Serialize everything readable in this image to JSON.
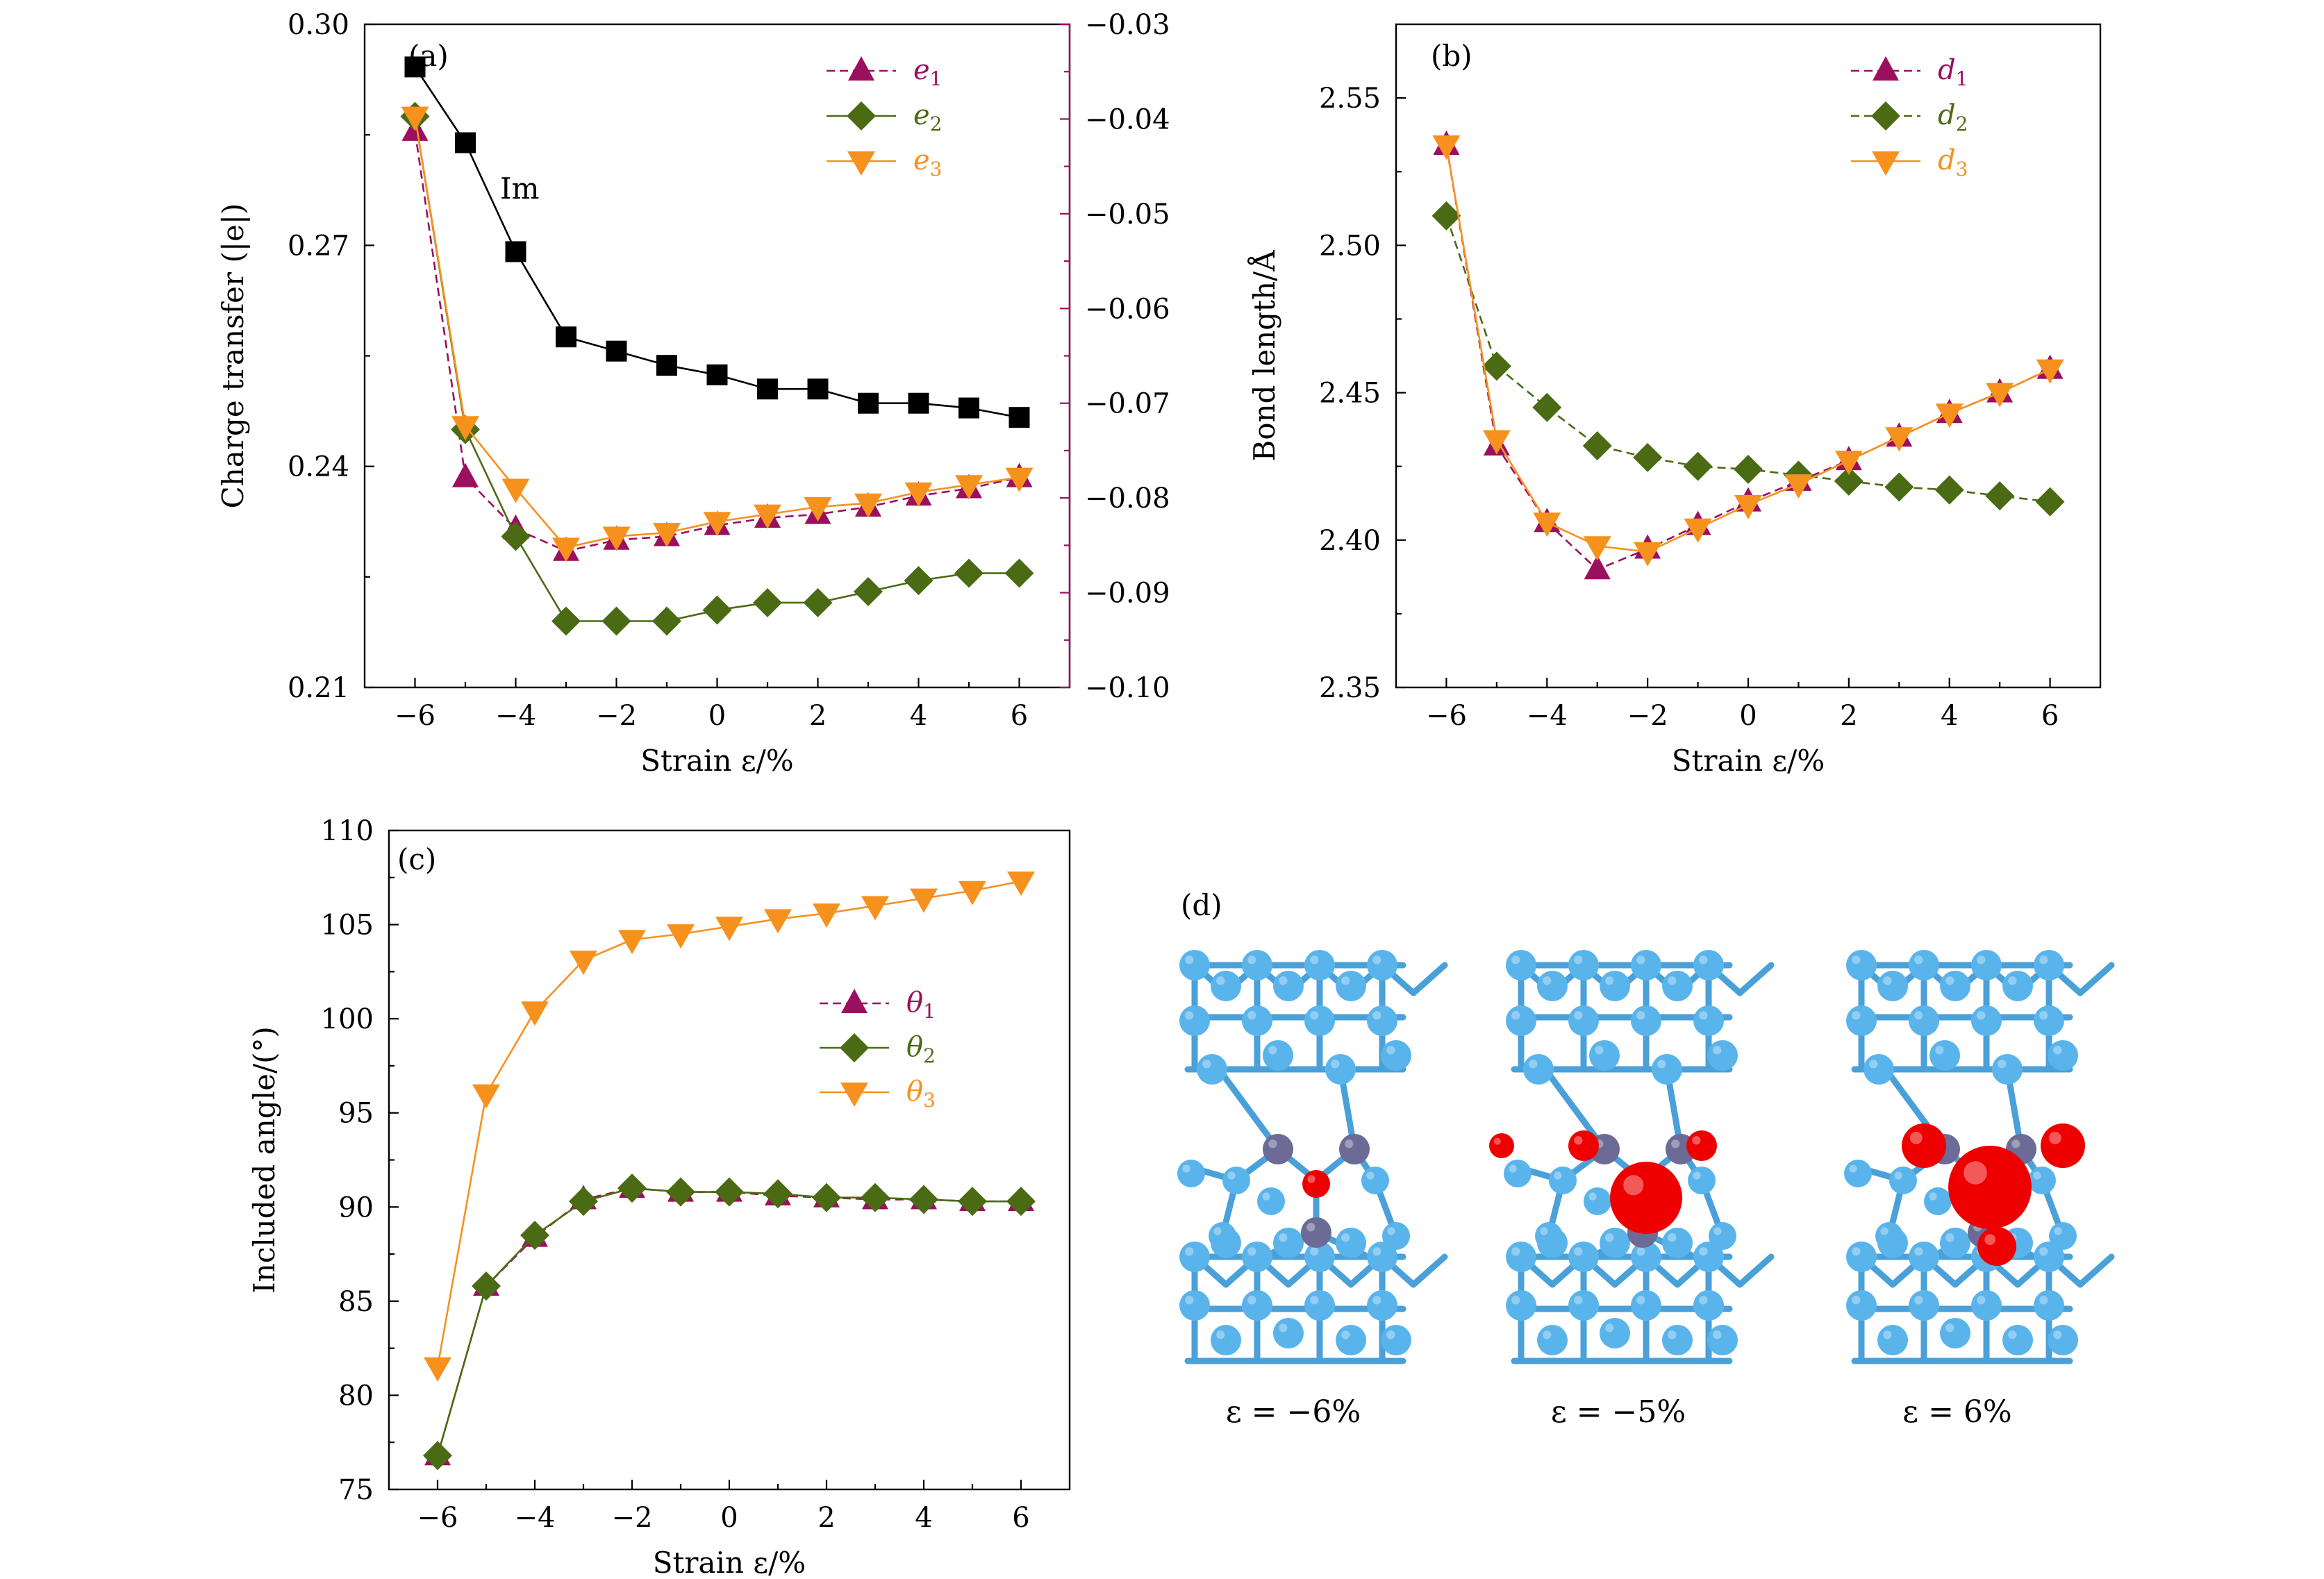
{
  "colors": {
    "e1": "#9b0f5f",
    "e2": "#4a6b14",
    "e3": "#f7911e",
    "im": "#000000",
    "right_axis": "#9b0f5f",
    "atom_si": "#5ab4ec",
    "atom_dopant": "#6b6b95",
    "atom_o": "#ee0000"
  },
  "panels": {
    "a": {
      "label": "(a)",
      "annotation": "Im"
    },
    "b": {
      "label": "(b)"
    },
    "c": {
      "label": "(c)"
    },
    "d": {
      "label": "(d)",
      "captions": [
        "ε = −6%",
        "ε = −5%",
        "ε = 6%"
      ]
    }
  },
  "chart_data": [
    {
      "id": "a",
      "type": "line",
      "xlabel": "Strain ε/%",
      "ylabel": "Charge transfer (|e|)",
      "xlim": [
        -7,
        7
      ],
      "xticks": [
        -6,
        -4,
        -2,
        0,
        2,
        4,
        6
      ],
      "ylim": [
        0.21,
        0.3
      ],
      "yticks": [
        "0.21",
        "0.24",
        "0.27",
        "0.30"
      ],
      "y2lim": [
        -0.1,
        -0.03
      ],
      "y2ticks": [
        "−0.10",
        "−0.09",
        "−0.08",
        "−0.07",
        "−0.06",
        "−0.05",
        "−0.04",
        "−0.03"
      ],
      "legend_position": "top-right",
      "x": [
        -6,
        -5,
        -4,
        -3,
        -2,
        -1,
        0,
        1,
        2,
        3,
        4,
        5,
        6
      ],
      "series": [
        {
          "key": "e1",
          "name": "e1",
          "marker": "triangle-up",
          "dash": true,
          "values": [
            0.2855,
            0.2385,
            0.2315,
            0.2285,
            0.23,
            0.2305,
            0.232,
            0.233,
            0.2335,
            0.2345,
            0.236,
            0.237,
            0.2385
          ]
        },
        {
          "key": "e2",
          "name": "e2",
          "marker": "diamond",
          "dash": false,
          "values": [
            0.2875,
            0.245,
            0.2305,
            0.219,
            0.219,
            0.219,
            0.2205,
            0.2215,
            0.2215,
            0.223,
            0.2245,
            0.2255,
            0.2255
          ]
        },
        {
          "key": "e3",
          "name": "e3",
          "marker": "triangle-down",
          "dash": false,
          "values": [
            0.2875,
            0.2455,
            0.237,
            0.229,
            0.2305,
            0.231,
            0.2325,
            0.2335,
            0.2345,
            0.235,
            0.2365,
            0.2375,
            0.2385
          ]
        },
        {
          "key": "im",
          "name": "Im",
          "marker": "square",
          "dash": false,
          "axis": "right",
          "values": [
            -0.0345,
            -0.0425,
            -0.054,
            -0.063,
            -0.0645,
            -0.066,
            -0.067,
            -0.0685,
            -0.0685,
            -0.07,
            -0.07,
            -0.0705,
            -0.0715
          ]
        }
      ]
    },
    {
      "id": "b",
      "type": "line",
      "xlabel": "Strain ε/%",
      "ylabel": "Bond length/Å",
      "xlim": [
        -7,
        7
      ],
      "xticks": [
        -6,
        -4,
        -2,
        0,
        2,
        4,
        6
      ],
      "ylim": [
        2.35,
        2.575
      ],
      "yticks": [
        "2.35",
        "2.40",
        "2.45",
        "2.50",
        "2.55"
      ],
      "legend_position": "top-right",
      "x": [
        -6,
        -5,
        -4,
        -3,
        -2,
        -1,
        0,
        1,
        2,
        3,
        4,
        5,
        6
      ],
      "series": [
        {
          "key": "e1",
          "name": "d1",
          "marker": "triangle-up",
          "dash": true,
          "values": [
            2.534,
            2.432,
            2.406,
            2.39,
            2.397,
            2.405,
            2.413,
            2.42,
            2.427,
            2.435,
            2.443,
            2.45,
            2.458
          ]
        },
        {
          "key": "e2",
          "name": "d2",
          "marker": "diamond",
          "dash": true,
          "values": [
            2.51,
            2.459,
            2.445,
            2.432,
            2.428,
            2.425,
            2.424,
            2.422,
            2.42,
            2.418,
            2.417,
            2.415,
            2.413
          ]
        },
        {
          "key": "e3",
          "name": "d3",
          "marker": "triangle-down",
          "dash": false,
          "values": [
            2.534,
            2.434,
            2.406,
            2.398,
            2.396,
            2.404,
            2.412,
            2.419,
            2.427,
            2.435,
            2.443,
            2.45,
            2.458
          ]
        }
      ]
    },
    {
      "id": "c",
      "type": "line",
      "xlabel": "Strain ε/%",
      "ylabel": "Included angle/(°)",
      "xlim": [
        -7,
        7
      ],
      "xticks": [
        -6,
        -4,
        -2,
        0,
        2,
        4,
        6
      ],
      "ylim": [
        75,
        110
      ],
      "yticks": [
        "75",
        "80",
        "85",
        "90",
        "95",
        "100",
        "105",
        "110"
      ],
      "legend_position": "right",
      "x": [
        -6,
        -5,
        -4,
        -3,
        -2,
        -1,
        0,
        1,
        2,
        3,
        4,
        5,
        6
      ],
      "series": [
        {
          "key": "e1",
          "name": "θ1",
          "marker": "triangle-up",
          "dash": true,
          "values": [
            76.8,
            85.8,
            88.4,
            90.4,
            91.0,
            90.8,
            90.8,
            90.6,
            90.5,
            90.4,
            90.4,
            90.3,
            90.3
          ]
        },
        {
          "key": "e2",
          "name": "θ2",
          "marker": "diamond",
          "dash": false,
          "values": [
            76.8,
            85.8,
            88.5,
            90.3,
            91.0,
            90.8,
            90.8,
            90.7,
            90.5,
            90.5,
            90.4,
            90.3,
            90.3
          ]
        },
        {
          "key": "e3",
          "name": "θ3",
          "marker": "triangle-down",
          "dash": false,
          "values": [
            81.5,
            96.0,
            100.4,
            103.1,
            104.2,
            104.5,
            104.9,
            105.3,
            105.6,
            106.0,
            106.4,
            106.8,
            107.3
          ]
        }
      ]
    }
  ]
}
